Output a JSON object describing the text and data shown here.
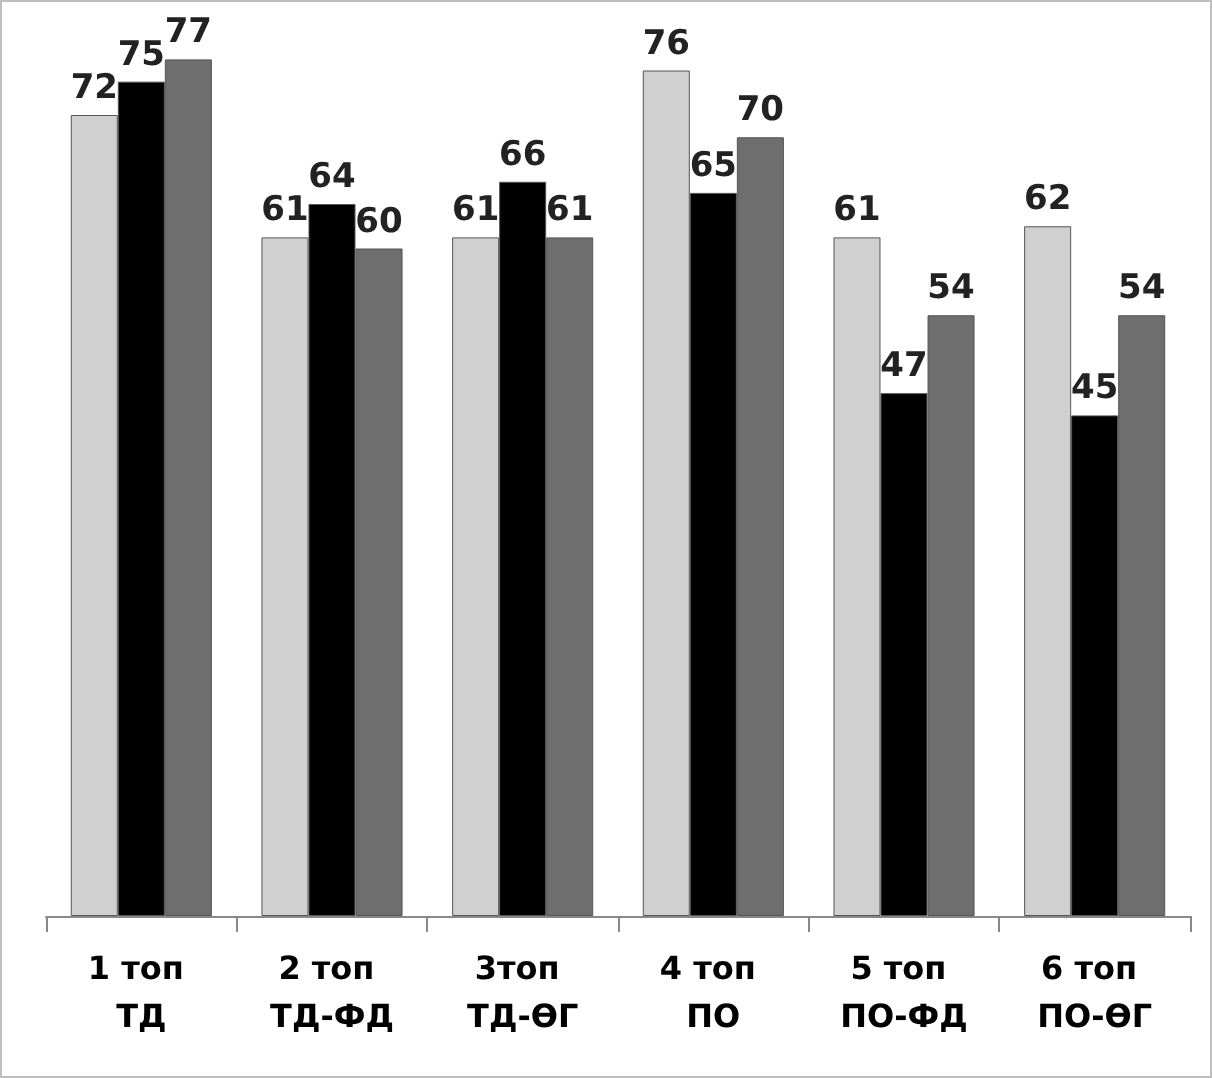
{
  "chart_data": {
    "type": "bar",
    "categories": [
      "1 топ ТД",
      "2 топ ТД-ФД",
      "3топ ТД-ӨГ",
      "4 топ ПО",
      "5 топ ПО-ФД",
      "6 топ ПО-ӨГ"
    ],
    "series": [
      {
        "color": "#d0d0d0",
        "values": [
          72,
          61,
          61,
          76,
          61,
          62
        ]
      },
      {
        "color": "#000000",
        "values": [
          75,
          64,
          66,
          65,
          47,
          45
        ]
      },
      {
        "color": "#6e6e6e",
        "values": [
          77,
          60,
          61,
          70,
          54,
          54
        ]
      }
    ],
    "data_labels": true
  }
}
